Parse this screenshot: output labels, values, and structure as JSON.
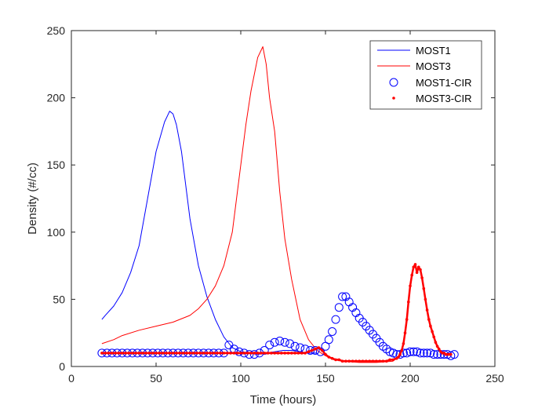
{
  "chart_data": {
    "type": "line",
    "title": "",
    "xlabel": "Time (hours)",
    "ylabel": "Density (#/cc)",
    "xlim": [
      0,
      250
    ],
    "ylim": [
      0,
      250
    ],
    "xticks": [
      0,
      50,
      100,
      150,
      200,
      250
    ],
    "yticks": [
      0,
      50,
      100,
      150,
      200,
      250
    ],
    "grid": false,
    "legend_position": "top-right",
    "series": [
      {
        "name": "MOST1",
        "style": "line",
        "color": "#0000FF",
        "x": [
          18,
          20,
          25,
          30,
          35,
          40,
          45,
          50,
          55,
          58,
          60,
          62,
          65,
          70,
          75,
          80,
          85,
          90,
          95,
          100,
          105,
          110,
          115,
          120,
          125,
          130,
          135,
          140,
          145
        ],
        "y": [
          35,
          38,
          45,
          55,
          70,
          90,
          125,
          160,
          182,
          190,
          188,
          180,
          160,
          110,
          75,
          52,
          35,
          22,
          14,
          11,
          10,
          9,
          10,
          11,
          12,
          12,
          11,
          10,
          10
        ]
      },
      {
        "name": "MOST3",
        "style": "line",
        "color": "#FF0000",
        "x": [
          18,
          25,
          30,
          40,
          50,
          60,
          70,
          75,
          80,
          85,
          90,
          95,
          100,
          103,
          106,
          110,
          113,
          115,
          117,
          120,
          123,
          126,
          130,
          135,
          140,
          145,
          150,
          155,
          160,
          170,
          180,
          190
        ],
        "y": [
          17,
          20,
          23,
          27,
          30,
          33,
          38,
          43,
          50,
          60,
          75,
          100,
          150,
          180,
          205,
          230,
          238,
          225,
          200,
          175,
          130,
          95,
          65,
          35,
          20,
          12,
          8,
          5,
          4,
          3,
          3,
          4
        ]
      },
      {
        "name": "MOST1-CIR",
        "style": "marker-circle",
        "color": "#0000FF",
        "x": [
          18,
          21,
          24,
          27,
          30,
          33,
          36,
          39,
          42,
          45,
          48,
          51,
          54,
          57,
          60,
          63,
          66,
          69,
          72,
          75,
          78,
          81,
          84,
          87,
          90,
          93,
          96,
          99,
          102,
          105,
          108,
          111,
          114,
          117,
          120,
          123,
          126,
          129,
          132,
          135,
          138,
          141,
          144,
          147,
          150,
          152,
          154,
          156,
          158,
          160,
          162,
          164,
          166,
          168,
          170,
          172,
          174,
          176,
          178,
          180,
          182,
          184,
          186,
          188,
          190,
          192,
          194,
          196,
          198,
          200,
          202,
          204,
          206,
          208,
          210,
          212,
          214,
          216,
          218,
          220,
          222,
          224,
          226
        ],
        "y": [
          10,
          10,
          10,
          10,
          10,
          10,
          10,
          10,
          10,
          10,
          10,
          10,
          10,
          10,
          10,
          10,
          10,
          10,
          10,
          10,
          10,
          10,
          10,
          10,
          10,
          16,
          13,
          11,
          10,
          9,
          9,
          10,
          12,
          16,
          18,
          19,
          18,
          17,
          15,
          14,
          13,
          12,
          12,
          11,
          15,
          20,
          26,
          35,
          44,
          52,
          52,
          48,
          44,
          40,
          36,
          33,
          30,
          27,
          24,
          21,
          18,
          15,
          13,
          11,
          10,
          9,
          9,
          10,
          10,
          11,
          11,
          11,
          10,
          10,
          10,
          10,
          9,
          9,
          9,
          9,
          9,
          8,
          9
        ]
      },
      {
        "name": "MOST3-CIR",
        "style": "marker-dot",
        "color": "#FF0000",
        "x": [
          18,
          20,
          22,
          24,
          26,
          28,
          30,
          32,
          34,
          36,
          38,
          40,
          42,
          44,
          46,
          48,
          50,
          52,
          54,
          56,
          58,
          60,
          62,
          64,
          66,
          68,
          70,
          72,
          74,
          76,
          78,
          80,
          82,
          84,
          86,
          88,
          90,
          92,
          94,
          96,
          98,
          100,
          102,
          104,
          106,
          108,
          110,
          112,
          114,
          116,
          118,
          120,
          122,
          124,
          126,
          128,
          130,
          132,
          134,
          136,
          138,
          140,
          142,
          144,
          146,
          148,
          150,
          152,
          154,
          156,
          158,
          160,
          162,
          164,
          166,
          168,
          170,
          172,
          174,
          176,
          178,
          180,
          182,
          184,
          186,
          188,
          190,
          192,
          193,
          194,
          195,
          196,
          197,
          198,
          199,
          200,
          201,
          202,
          203,
          204,
          205,
          206,
          207,
          208,
          209,
          210,
          211,
          212,
          213,
          214,
          215,
          216,
          217,
          218,
          219,
          220,
          221,
          222,
          223,
          224
        ],
        "y": [
          10,
          10,
          10,
          10,
          10,
          10,
          10,
          10,
          10,
          10,
          10,
          10,
          10,
          10,
          10,
          10,
          10,
          10,
          10,
          10,
          10,
          10,
          10,
          10,
          10,
          10,
          10,
          10,
          10,
          10,
          10,
          10,
          10,
          10,
          10,
          10,
          10,
          10,
          10,
          10,
          10,
          10,
          10,
          10,
          10,
          10,
          10,
          10,
          10,
          10,
          10,
          10,
          10,
          10,
          10,
          10,
          10,
          10,
          10,
          10,
          10,
          11,
          12,
          13,
          14,
          12,
          9,
          7,
          6,
          5,
          5,
          4,
          4,
          4,
          4,
          4,
          4,
          4,
          4,
          4,
          4,
          4,
          4,
          4,
          4,
          5,
          5,
          6,
          7,
          9,
          12,
          17,
          25,
          35,
          48,
          60,
          68,
          74,
          76,
          70,
          74,
          72,
          66,
          58,
          50,
          42,
          35,
          30,
          26,
          22,
          18,
          15,
          13,
          11,
          10,
          10,
          9,
          9,
          9,
          9
        ]
      }
    ]
  }
}
